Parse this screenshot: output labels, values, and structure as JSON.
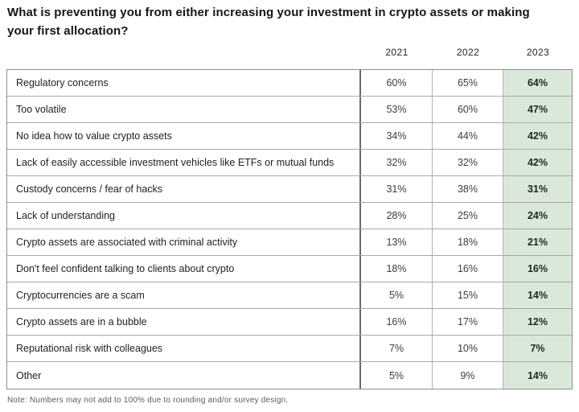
{
  "title": "What is preventing you from either increasing your investment in crypto assets or making your first allocation?",
  "note": "Note: Numbers may not add to 100% due to rounding and/or survey design.",
  "colors": {
    "highlight_green": "#d9e8da",
    "border_gray": "#8f8f8f",
    "divider_dark": "#696969"
  },
  "table": {
    "columns": [
      "2021",
      "2022",
      "2023"
    ],
    "highlight_column": "2023",
    "rows": [
      {
        "label": "Regulatory concerns",
        "values": [
          "60%",
          "65%",
          "64%"
        ]
      },
      {
        "label": "Too volatile",
        "values": [
          "53%",
          "60%",
          "47%"
        ]
      },
      {
        "label": "No idea how to value crypto assets",
        "values": [
          "34%",
          "44%",
          "42%"
        ]
      },
      {
        "label": "Lack of easily accessible investment vehicles like ETFs or mutual funds",
        "values": [
          "32%",
          "32%",
          "42%"
        ]
      },
      {
        "label": "Custody concerns / fear of hacks",
        "values": [
          "31%",
          "38%",
          "31%"
        ]
      },
      {
        "label": "Lack of understanding",
        "values": [
          "28%",
          "25%",
          "24%"
        ]
      },
      {
        "label": "Crypto assets are associated with criminal activity",
        "values": [
          "13%",
          "18%",
          "21%"
        ]
      },
      {
        "label": "Don't feel confident talking to clients about crypto",
        "values": [
          "18%",
          "16%",
          "16%"
        ]
      },
      {
        "label": "Cryptocurrencies are a scam",
        "values": [
          "5%",
          "15%",
          "14%"
        ]
      },
      {
        "label": "Crypto assets are in a bubble",
        "values": [
          "16%",
          "17%",
          "12%"
        ]
      },
      {
        "label": "Reputational risk with colleagues",
        "values": [
          "7%",
          "10%",
          "7%"
        ]
      },
      {
        "label": "Other",
        "values": [
          "5%",
          "9%",
          "14%"
        ]
      }
    ]
  },
  "chart_data": {
    "type": "table",
    "title": "What is preventing you from either increasing your investment in crypto assets or making your first allocation?",
    "unit": "%",
    "categories": [
      "Regulatory concerns",
      "Too volatile",
      "No idea how to value crypto assets",
      "Lack of easily accessible investment vehicles like ETFs or mutual funds",
      "Custody concerns / fear of hacks",
      "Lack of understanding",
      "Crypto assets are associated with criminal activity",
      "Don't feel confident talking to clients about crypto",
      "Cryptocurrencies are a scam",
      "Crypto assets are in a bubble",
      "Reputational risk with colleagues",
      "Other"
    ],
    "series": [
      {
        "name": "2021",
        "values": [
          60,
          53,
          34,
          32,
          31,
          28,
          13,
          18,
          5,
          16,
          7,
          5
        ]
      },
      {
        "name": "2022",
        "values": [
          65,
          60,
          44,
          32,
          38,
          25,
          18,
          16,
          15,
          17,
          10,
          9
        ]
      },
      {
        "name": "2023",
        "values": [
          64,
          47,
          42,
          42,
          31,
          24,
          21,
          16,
          14,
          12,
          7,
          14
        ]
      }
    ],
    "highlight_series": "2023",
    "note": "Note: Numbers may not add to 100% due to rounding and/or survey design."
  }
}
